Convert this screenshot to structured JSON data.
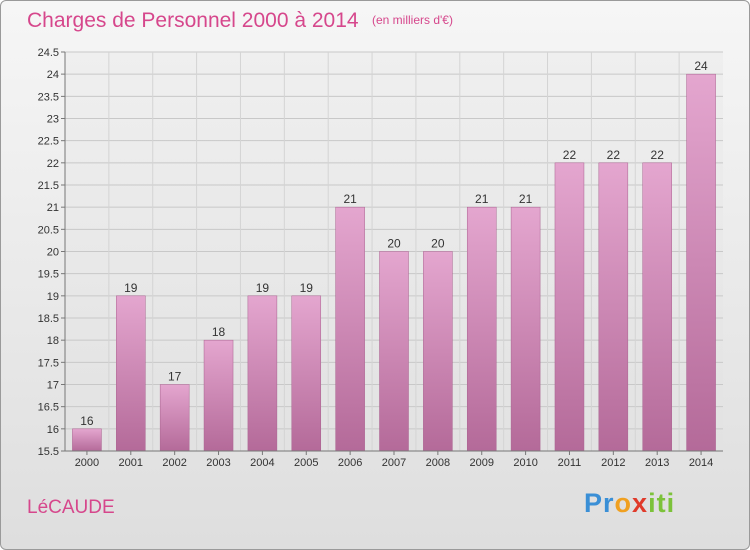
{
  "title": "Charges de Personnel 2000 à 2014",
  "subtitle": "(en milliers d'€)",
  "commune": "LéCAUDE",
  "logo": {
    "letters": [
      "P",
      "r",
      "o",
      "x",
      "i",
      "t",
      "i"
    ],
    "colors": [
      "#3a8fd6",
      "#3a8fd6",
      "#f0a020",
      "#e03a2a",
      "#7cc23a",
      "#7cc23a",
      "#7cc23a"
    ]
  },
  "chart_data": {
    "type": "bar",
    "title": "Charges de Personnel 2000 à 2014",
    "categories": [
      "2000",
      "2001",
      "2002",
      "2003",
      "2004",
      "2005",
      "2006",
      "2007",
      "2008",
      "2009",
      "2010",
      "2011",
      "2012",
      "2013",
      "2014"
    ],
    "values": [
      16,
      19,
      17,
      18,
      19,
      19,
      21,
      20,
      20,
      21,
      21,
      22,
      22,
      22,
      24
    ],
    "data_labels": [
      "16",
      "19",
      "17",
      "18",
      "19",
      "19",
      "21",
      "20",
      "20",
      "21",
      "21",
      "22",
      "22",
      "22",
      "24"
    ],
    "ylim": [
      15.5,
      24.5
    ],
    "yticks": [
      "15.5",
      "16",
      "16.5",
      "17",
      "17.5",
      "18",
      "18.5",
      "19",
      "19.5",
      "20",
      "20.5",
      "21",
      "21.5",
      "22",
      "22.5",
      "23",
      "23.5",
      "24",
      "24.5"
    ],
    "grid": true,
    "bar_color": "#d98ab8"
  }
}
